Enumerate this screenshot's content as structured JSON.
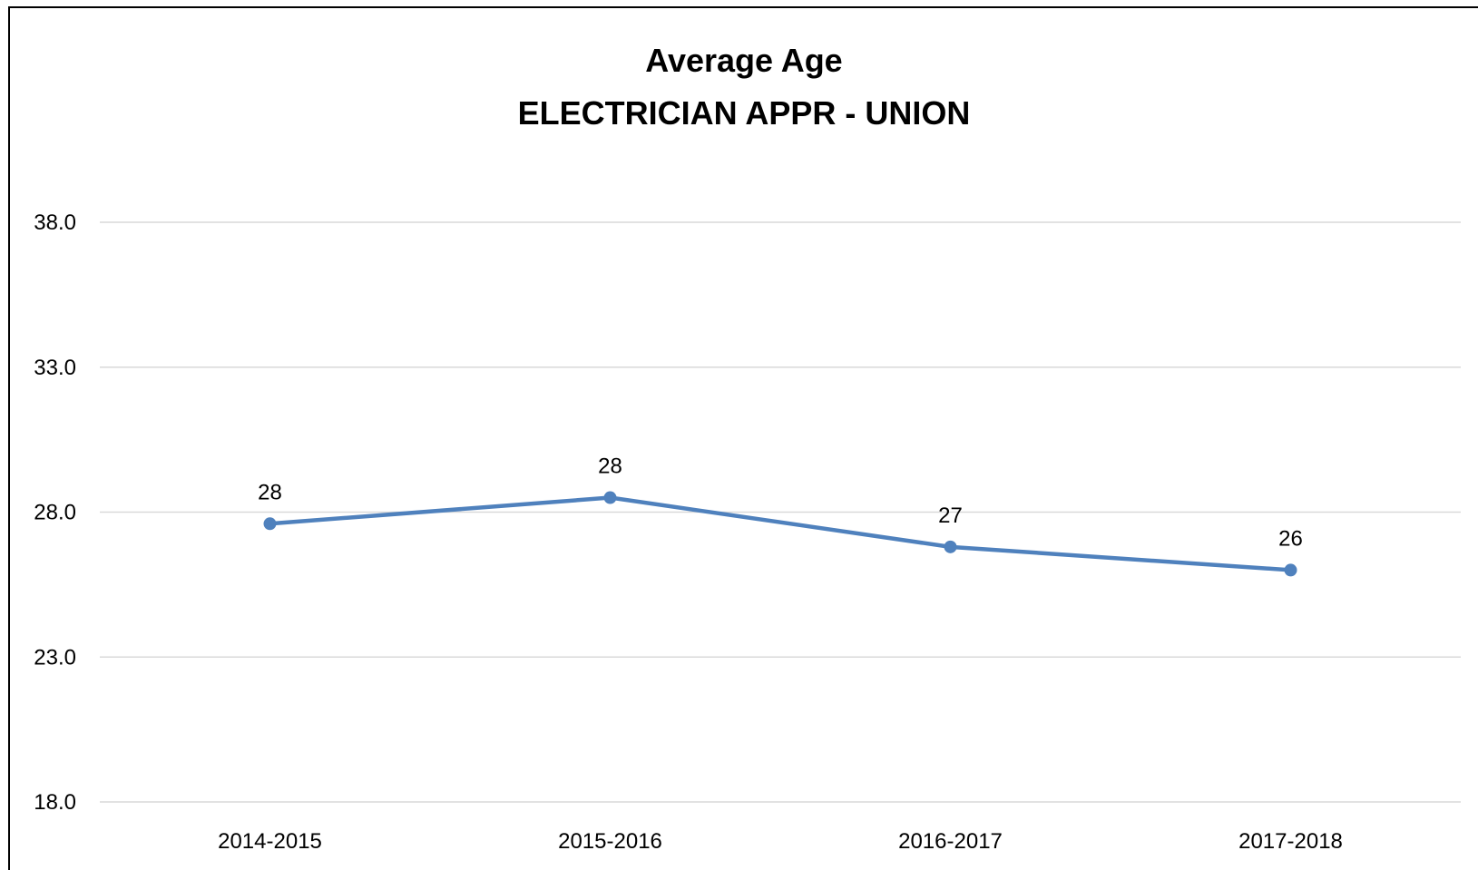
{
  "chart_data": {
    "type": "line",
    "title": "Average Age",
    "subtitle": "ELECTRICIAN APPR - UNION",
    "xlabel": "",
    "ylabel": "",
    "categories": [
      "2014-2015",
      "2015-2016",
      "2016-2017",
      "2017-2018"
    ],
    "series": [
      {
        "values": [
          27.6,
          28.5,
          26.8,
          26.0
        ],
        "data_labels": [
          "28",
          "28",
          "27",
          "26"
        ],
        "color": "#4F81BD"
      }
    ],
    "ylim": [
      18.0,
      38.0
    ],
    "yticks": [
      "18.0",
      "23.0",
      "28.0",
      "33.0",
      "38.0"
    ],
    "ytick_values": [
      18,
      23,
      28,
      33,
      38
    ],
    "grid": true,
    "grid_color": "#D9D9D9",
    "legend": "none"
  }
}
